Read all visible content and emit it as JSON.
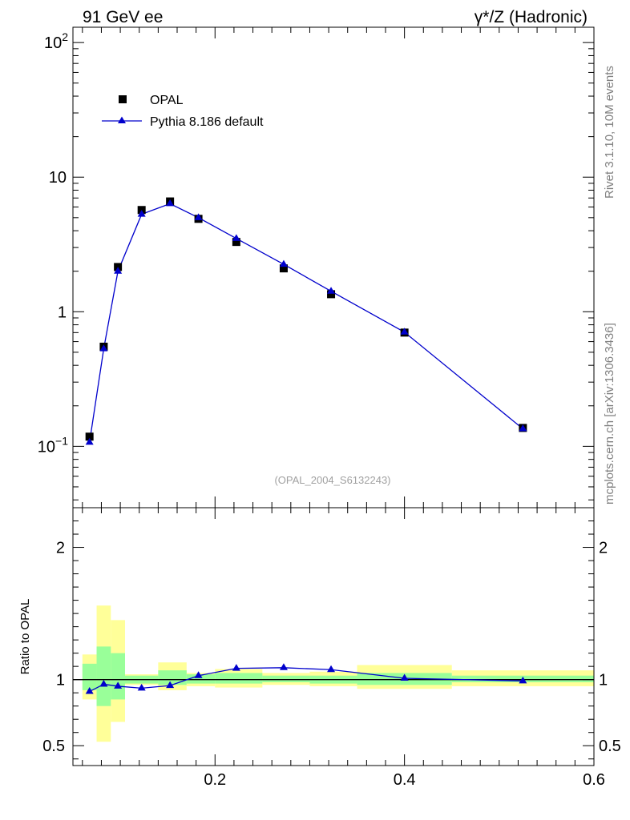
{
  "header": {
    "left_title": "91 GeV ee",
    "right_title": "γ*/Z (Hadronic)"
  },
  "side_labels": {
    "rivet": "Rivet 3.1.10,  10M events",
    "mcplots": "mcplots.cern.ch [arXiv:1306.3436]"
  },
  "annotation": "(OPAL_2004_S6132243)",
  "ratio_ylabel": "Ratio to OPAL",
  "legend": {
    "data_label": "OPAL",
    "mc_label": "Pythia 8.186 default"
  },
  "colors": {
    "data": "#000000",
    "mc": "#0000cc",
    "band_inner": "#99ff99",
    "band_outer": "#ffff99"
  },
  "chart_data": [
    {
      "type": "scatter",
      "yscale": "log",
      "xlim": [
        0.05,
        0.6
      ],
      "ylim": [
        0.035,
        130
      ],
      "yticks": [
        {
          "value": 0.1,
          "label": "10^-1"
        },
        {
          "value": 1,
          "label": "1"
        },
        {
          "value": 10,
          "label": "10"
        },
        {
          "value": 100,
          "label": "10^2"
        }
      ],
      "series": [
        {
          "name": "OPAL",
          "marker": "square",
          "x": [
            0.0675,
            0.0825,
            0.0975,
            0.1225,
            0.1525,
            0.1825,
            0.2225,
            0.2725,
            0.3225,
            0.4,
            0.525
          ],
          "y": [
            0.118,
            0.55,
            2.15,
            5.7,
            6.6,
            4.9,
            3.3,
            2.1,
            1.35,
            0.7,
            0.137
          ]
        },
        {
          "name": "Pythia 8.186 default",
          "marker": "triangle",
          "line": true,
          "x": [
            0.0675,
            0.0825,
            0.0975,
            0.1225,
            0.1525,
            0.1825,
            0.2225,
            0.2725,
            0.3225,
            0.4,
            0.525
          ],
          "y": [
            0.107,
            0.53,
            2.0,
            5.3,
            6.35,
            5.0,
            3.5,
            2.25,
            1.42,
            0.705,
            0.135
          ]
        }
      ]
    },
    {
      "type": "line",
      "ylabel": "Ratio to OPAL",
      "xlim": [
        0.05,
        0.6
      ],
      "ylim": [
        0.35,
        2.3
      ],
      "xticks": [
        0.2,
        0.4,
        0.6
      ],
      "yticks": [
        0.5,
        1,
        2
      ],
      "bins": [
        {
          "x0": 0.06,
          "x1": 0.075,
          "inner": [
            0.92,
            1.12
          ],
          "outer": [
            0.85,
            1.19
          ]
        },
        {
          "x0": 0.075,
          "x1": 0.09,
          "inner": [
            0.8,
            1.25
          ],
          "outer": [
            0.53,
            1.56
          ]
        },
        {
          "x0": 0.09,
          "x1": 0.105,
          "inner": [
            0.85,
            1.2
          ],
          "outer": [
            0.68,
            1.45
          ]
        },
        {
          "x0": 0.105,
          "x1": 0.14,
          "inner": [
            0.97,
            1.03
          ],
          "outer": [
            0.96,
            1.04
          ]
        },
        {
          "x0": 0.14,
          "x1": 0.17,
          "inner": [
            0.96,
            1.07
          ],
          "outer": [
            0.92,
            1.13
          ]
        },
        {
          "x0": 0.17,
          "x1": 0.2,
          "inner": [
            0.97,
            1.04
          ],
          "outer": [
            0.95,
            1.05
          ]
        },
        {
          "x0": 0.2,
          "x1": 0.25,
          "inner": [
            0.97,
            1.05
          ],
          "outer": [
            0.94,
            1.08
          ]
        },
        {
          "x0": 0.25,
          "x1": 0.3,
          "inner": [
            0.98,
            1.03
          ],
          "outer": [
            0.96,
            1.05
          ]
        },
        {
          "x0": 0.3,
          "x1": 0.35,
          "inner": [
            0.97,
            1.03
          ],
          "outer": [
            0.95,
            1.06
          ]
        },
        {
          "x0": 0.35,
          "x1": 0.45,
          "inner": [
            0.96,
            1.05
          ],
          "outer": [
            0.93,
            1.11
          ]
        },
        {
          "x0": 0.45,
          "x1": 0.6,
          "inner": [
            0.98,
            1.03
          ],
          "outer": [
            0.95,
            1.07
          ]
        }
      ],
      "series": [
        {
          "name": "Pythia 8.186 default",
          "x": [
            0.0675,
            0.0825,
            0.0975,
            0.1225,
            0.1525,
            0.1825,
            0.2225,
            0.2725,
            0.3225,
            0.4,
            0.525
          ],
          "y": [
            0.91,
            0.965,
            0.95,
            0.935,
            0.955,
            1.03,
            1.085,
            1.09,
            1.075,
            1.01,
            0.99
          ]
        }
      ]
    }
  ]
}
